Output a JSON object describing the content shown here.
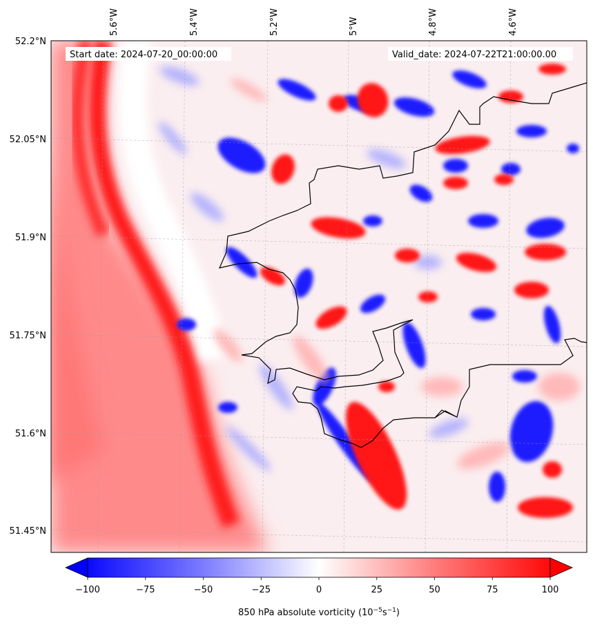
{
  "map": {
    "start_date": "Start date: 2024-07-20_00:00:00",
    "valid_date": "Valid_date: 2024-07-22T21:00:00.00",
    "lon_labels": [
      "5.6°W",
      "5.4°W",
      "5.2°W",
      "5°W",
      "4.8°W",
      "4.6°W"
    ],
    "lat_labels": [
      "52.2°N",
      "52.05°N",
      "51.9°N",
      "51.75°N",
      "51.6°N",
      "51.45°N"
    ],
    "colors": {
      "negative": "#0000ff",
      "zero": "#ffffff",
      "positive": "#ff0000",
      "coastline": "#000000"
    }
  },
  "colorbar": {
    "tick_labels": [
      "−100",
      "−75",
      "−50",
      "−25",
      "0",
      "25",
      "50",
      "75",
      "100"
    ],
    "label_prefix": "850 hPa absolute vorticity (10",
    "label_exp1": "−5",
    "label_mid": "s",
    "label_exp2": "−1",
    "label_suffix": ")"
  }
}
